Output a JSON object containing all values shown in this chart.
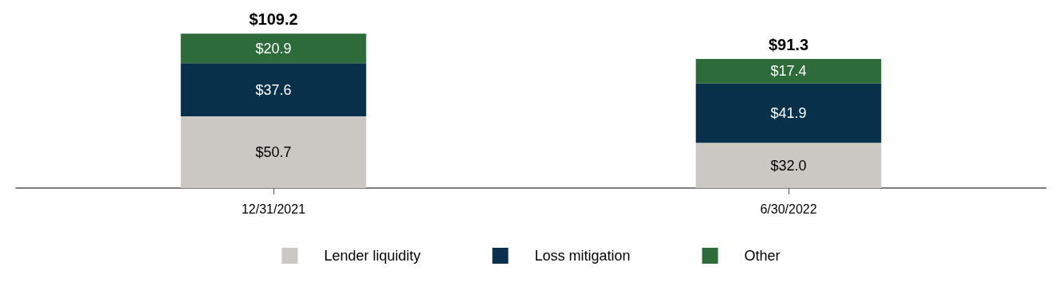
{
  "chart_data": {
    "type": "bar",
    "stacked": true,
    "tick_labels": "x",
    "categories": [
      "12/31/2021",
      "6/30/2022"
    ],
    "series": [
      {
        "name": "Lender liquidity",
        "color": "#cbc8c3",
        "values": [
          50.7,
          32.0
        ],
        "value_labels": [
          "$50.7",
          "$32.0"
        ]
      },
      {
        "name": "Loss mitigation",
        "color": "#08304b",
        "values": [
          37.6,
          41.9
        ],
        "value_labels": [
          "$37.6",
          "$41.9"
        ]
      },
      {
        "name": "Other",
        "color": "#2e6b3a",
        "values": [
          20.9,
          17.4
        ],
        "value_labels": [
          "$20.9",
          "$17.4"
        ]
      }
    ],
    "totals": [
      "$109.2",
      "$91.3"
    ],
    "legend": "bottom",
    "grid": false
  }
}
